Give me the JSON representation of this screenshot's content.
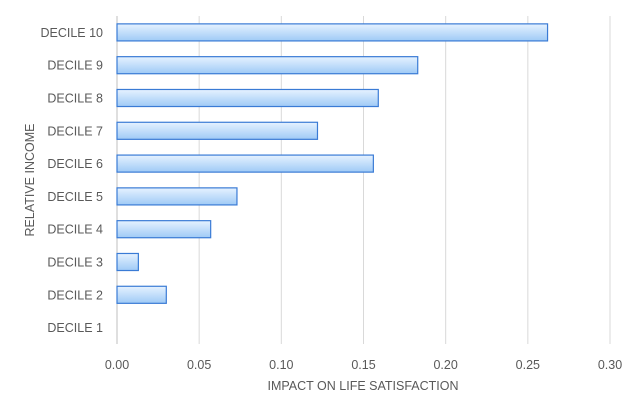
{
  "chart_data": {
    "type": "bar",
    "orientation": "horizontal",
    "title": "",
    "xlabel": "IMPACT ON LIFE SATISFACTION",
    "ylabel": "RELATIVE INCOME",
    "categories": [
      "DECILE 10",
      "DECILE 9",
      "DECILE 8",
      "DECILE 7",
      "DECILE 6",
      "DECILE 5",
      "DECILE 4",
      "DECILE 3",
      "DECILE 2",
      "DECILE 1"
    ],
    "values": [
      0.262,
      0.183,
      0.159,
      0.122,
      0.156,
      0.073,
      0.057,
      0.013,
      0.03,
      0.0
    ],
    "xlim": [
      0.0,
      0.3
    ],
    "xticks": [
      "0.00",
      "0.05",
      "0.10",
      "0.15",
      "0.20",
      "0.25",
      "0.30"
    ],
    "grid": true,
    "legend": "none",
    "colors": {
      "bar_fill_top": "#e6f2ff",
      "bar_fill_bottom": "#9fcaf6",
      "bar_stroke": "#3a7bd5",
      "grid": "#d9d9d9",
      "text": "#595959"
    }
  }
}
